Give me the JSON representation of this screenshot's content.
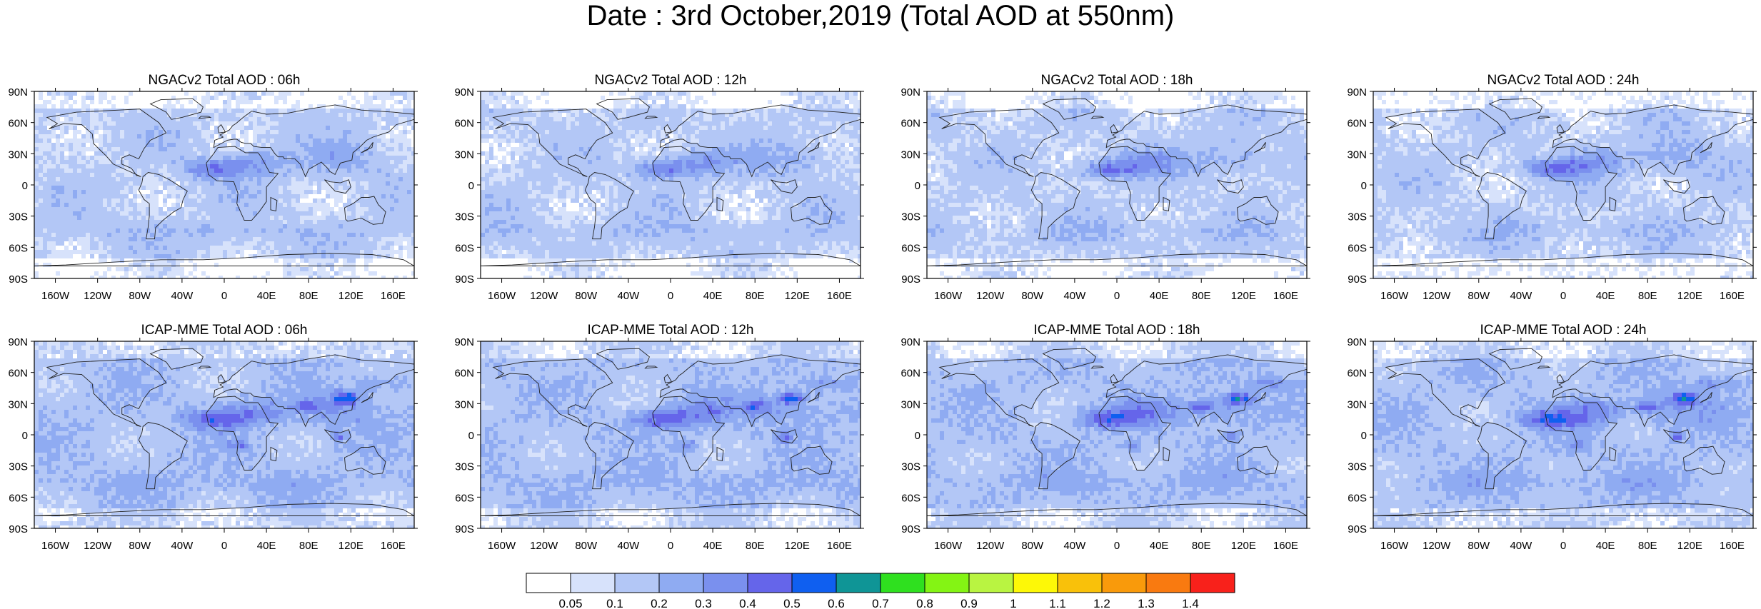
{
  "title": "Date : 3rd October,2019 (Total AOD at 550nm)",
  "panels": [
    {
      "title": "NGACv2 Total AOD : 06h",
      "model": "NGACv2",
      "hour": "06h"
    },
    {
      "title": "NGACv2 Total AOD : 12h",
      "model": "NGACv2",
      "hour": "12h"
    },
    {
      "title": "NGACv2 Total AOD : 18h",
      "model": "NGACv2",
      "hour": "18h"
    },
    {
      "title": "NGACv2 Total AOD : 24h",
      "model": "NGACv2",
      "hour": "24h"
    },
    {
      "title": "ICAP-MME Total AOD : 06h",
      "model": "ICAP-MME",
      "hour": "06h"
    },
    {
      "title": "ICAP-MME Total AOD : 12h",
      "model": "ICAP-MME",
      "hour": "12h"
    },
    {
      "title": "ICAP-MME Total AOD : 18h",
      "model": "ICAP-MME",
      "hour": "18h"
    },
    {
      "title": "ICAP-MME Total AOD : 24h",
      "model": "ICAP-MME",
      "hour": "24h"
    }
  ],
  "axes": {
    "lat_ticks": [
      "90N",
      "60N",
      "30N",
      "0",
      "30S",
      "60S",
      "90S"
    ],
    "lon_ticks": [
      "160W",
      "120W",
      "80W",
      "40W",
      "0",
      "40E",
      "80E",
      "120E",
      "160E"
    ]
  },
  "colorbar": {
    "labels": [
      "0.05",
      "0.1",
      "0.2",
      "0.3",
      "0.4",
      "0.5",
      "0.6",
      "0.7",
      "0.8",
      "0.9",
      "1",
      "1.1",
      "1.2",
      "1.3",
      "1.4"
    ],
    "colors": [
      "#ffffff",
      "#d7e2fb",
      "#b3c7f6",
      "#8fabf2",
      "#7a90ee",
      "#6565ea",
      "#0f5ff0",
      "#0f9596",
      "#2fe01f",
      "#84f414",
      "#b9f441",
      "#fdf807",
      "#f9c10a",
      "#f99a0b",
      "#f97a10",
      "#f8211b"
    ]
  }
}
